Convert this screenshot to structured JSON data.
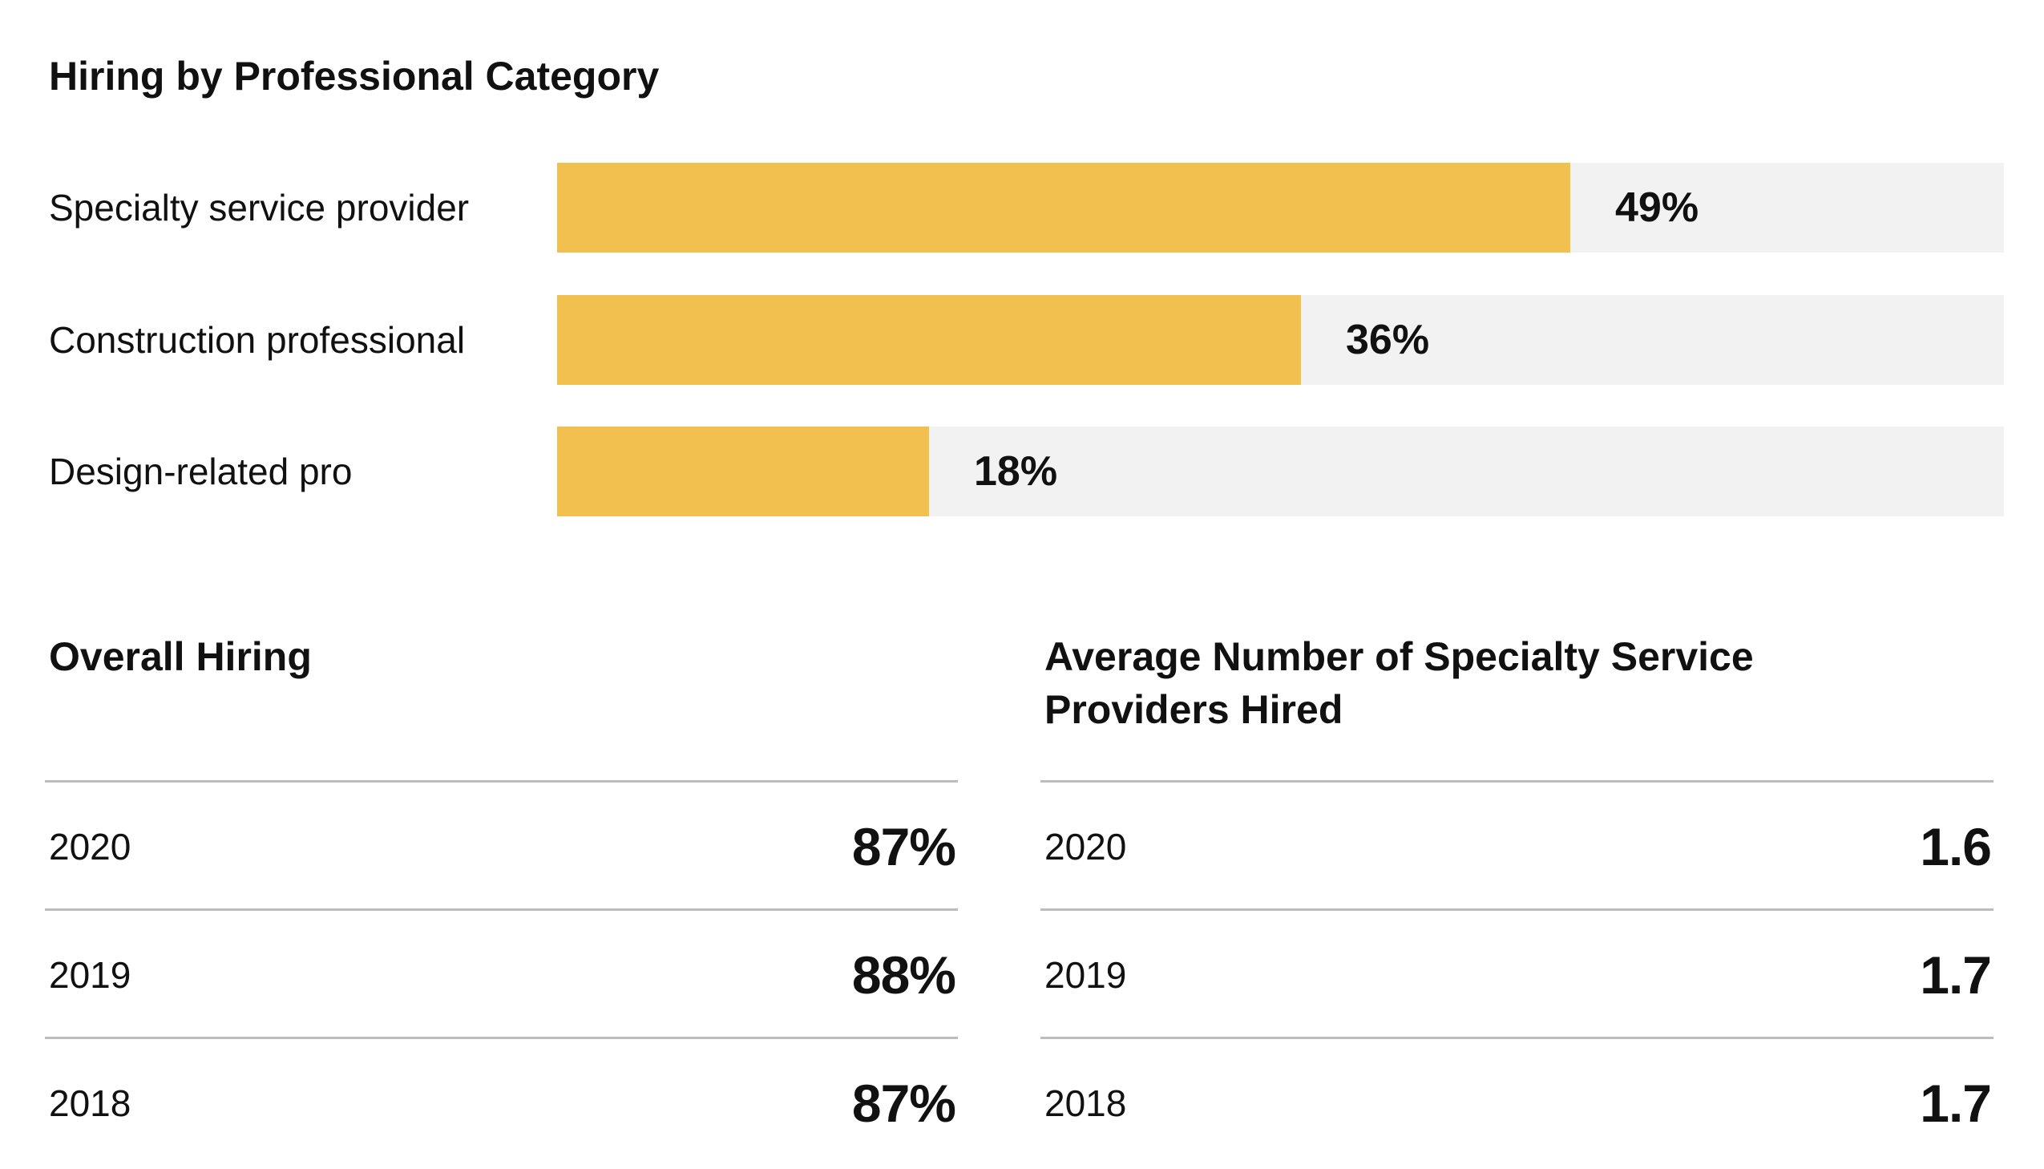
{
  "chart_data": [
    {
      "type": "bar",
      "orientation": "horizontal",
      "title": "Hiring by Professional Category",
      "categories": [
        "Specialty service provider",
        "Construction professional",
        "Design-related pro"
      ],
      "values": [
        49,
        36,
        18
      ],
      "value_labels": [
        "49%",
        "36%",
        "18%"
      ],
      "xlim": [
        0,
        70
      ],
      "unit": "%",
      "grid": false,
      "colors": {
        "bar": "#f2c04e",
        "track": "#f2f2f2"
      }
    },
    {
      "type": "table",
      "title": "Overall Hiring",
      "rows": [
        {
          "year": "2020",
          "value": "87%"
        },
        {
          "year": "2019",
          "value": "88%"
        },
        {
          "year": "2018",
          "value": "87%"
        }
      ]
    },
    {
      "type": "table",
      "title": "Average Number of Specialty Service Providers Hired",
      "rows": [
        {
          "year": "2020",
          "value": "1.6"
        },
        {
          "year": "2019",
          "value": "1.7"
        },
        {
          "year": "2018",
          "value": "1.7"
        }
      ]
    }
  ]
}
